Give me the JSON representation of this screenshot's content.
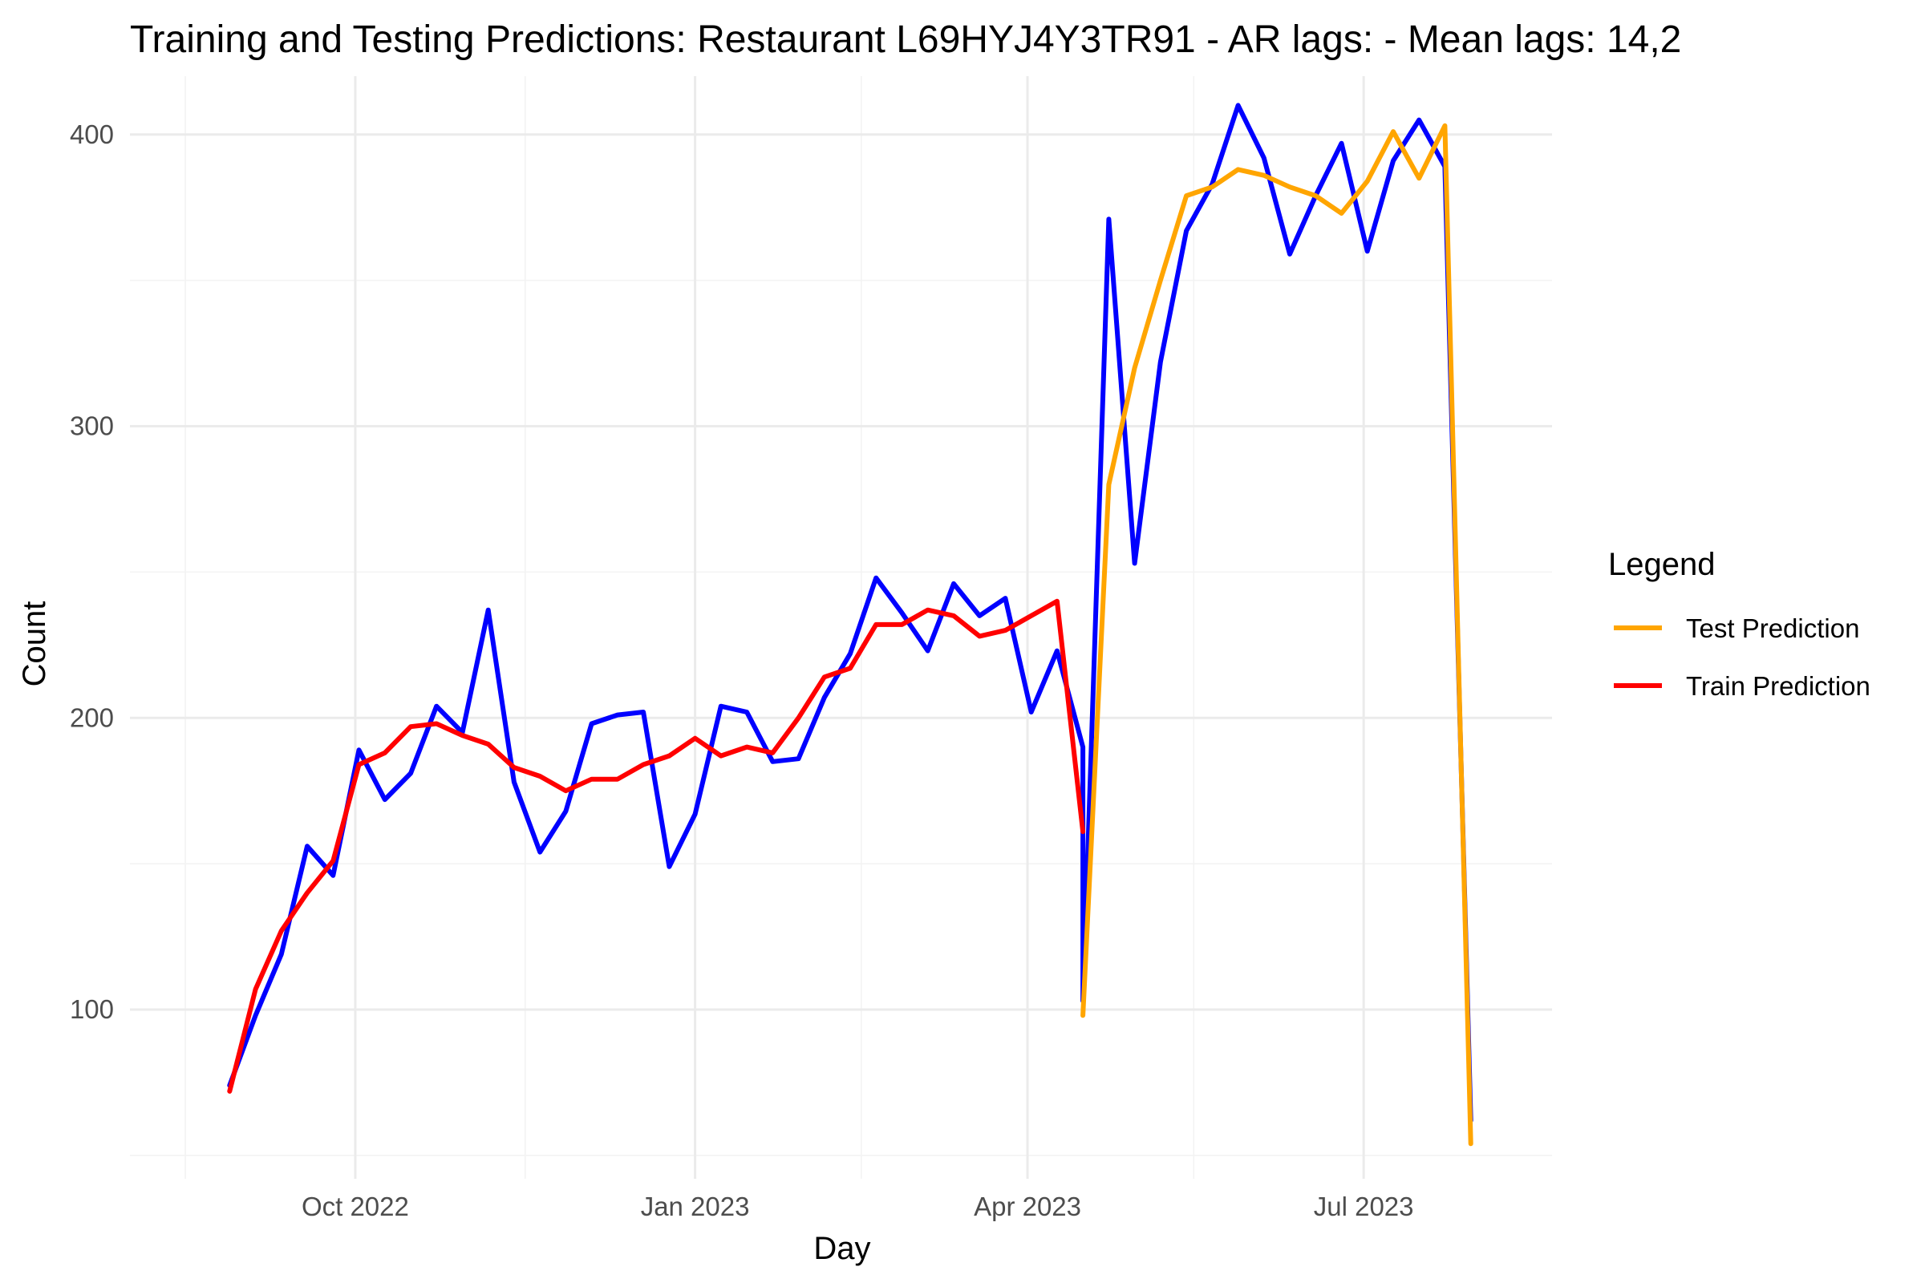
{
  "chart_data": {
    "type": "line",
    "title": "Training and Testing Predictions: Restaurant L69HYJ4Y3TR91 - AR lags:  - Mean lags: 14,2",
    "xlabel": "Day",
    "ylabel": "Count",
    "xlim": [
      "2022-08-01",
      "2023-08-21"
    ],
    "ylim": [
      42,
      420
    ],
    "x_ticks": [
      {
        "date": "2022-10-01",
        "label": "Oct 2022"
      },
      {
        "date": "2023-01-01",
        "label": "Jan 2023"
      },
      {
        "date": "2023-04-01",
        "label": "Apr 2023"
      },
      {
        "date": "2023-07-01",
        "label": "Jul 2023"
      }
    ],
    "x_minor_ticks": [
      "2022-08-16",
      "2022-11-16",
      "2023-02-15",
      "2023-05-16"
    ],
    "y_ticks": [
      100,
      200,
      300,
      400
    ],
    "y_minor_ticks": [
      50,
      150,
      250,
      350
    ],
    "grid": true,
    "legend": {
      "title": "Legend",
      "position": "right",
      "entries": [
        {
          "label": "Test Prediction",
          "color": "#FFA500"
        },
        {
          "label": "Train Prediction",
          "color": "#FF0000"
        }
      ]
    },
    "series": [
      {
        "color": "#0000FF",
        "points": [
          [
            "2022-08-28",
            74
          ],
          [
            "2022-09-04",
            98
          ],
          [
            "2022-09-11",
            119
          ],
          [
            "2022-09-18",
            156
          ],
          [
            "2022-09-25",
            146
          ],
          [
            "2022-10-02",
            189
          ],
          [
            "2022-10-09",
            172
          ],
          [
            "2022-10-16",
            181
          ],
          [
            "2022-10-23",
            204
          ],
          [
            "2022-10-30",
            195
          ],
          [
            "2022-11-06",
            237
          ],
          [
            "2022-11-13",
            178
          ],
          [
            "2022-11-20",
            154
          ],
          [
            "2022-11-27",
            168
          ],
          [
            "2022-12-04",
            198
          ],
          [
            "2022-12-11",
            201
          ],
          [
            "2022-12-18",
            202
          ],
          [
            "2022-12-25",
            149
          ],
          [
            "2023-01-01",
            167
          ],
          [
            "2023-01-08",
            204
          ],
          [
            "2023-01-15",
            202
          ],
          [
            "2023-01-22",
            185
          ],
          [
            "2023-01-29",
            186
          ],
          [
            "2023-02-05",
            207
          ],
          [
            "2023-02-12",
            222
          ],
          [
            "2023-02-19",
            248
          ],
          [
            "2023-02-26",
            236
          ],
          [
            "2023-03-05",
            223
          ],
          [
            "2023-03-12",
            246
          ],
          [
            "2023-03-19",
            235
          ],
          [
            "2023-03-26",
            241
          ],
          [
            "2023-04-02",
            202
          ],
          [
            "2023-04-09",
            223
          ],
          [
            "2023-04-16",
            190
          ],
          [
            "2023-04-16",
            103
          ],
          [
            "2023-04-23",
            371
          ],
          [
            "2023-04-30",
            253
          ],
          [
            "2023-05-07",
            322
          ],
          [
            "2023-05-14",
            367
          ],
          [
            "2023-05-21",
            383
          ],
          [
            "2023-05-28",
            410
          ],
          [
            "2023-06-04",
            392
          ],
          [
            "2023-06-11",
            359
          ],
          [
            "2023-06-18",
            379
          ],
          [
            "2023-06-25",
            397
          ],
          [
            "2023-07-02",
            360
          ],
          [
            "2023-07-09",
            391
          ],
          [
            "2023-07-16",
            405
          ],
          [
            "2023-07-23",
            389
          ],
          [
            "2023-07-30",
            62
          ]
        ]
      },
      {
        "name": "Train Prediction",
        "color": "#FF0000",
        "points": [
          [
            "2022-08-28",
            72
          ],
          [
            "2022-09-04",
            107
          ],
          [
            "2022-09-11",
            127
          ],
          [
            "2022-09-18",
            140
          ],
          [
            "2022-09-25",
            151
          ],
          [
            "2022-10-02",
            184
          ],
          [
            "2022-10-09",
            188
          ],
          [
            "2022-10-16",
            197
          ],
          [
            "2022-10-23",
            198
          ],
          [
            "2022-10-30",
            194
          ],
          [
            "2022-11-06",
            191
          ],
          [
            "2022-11-13",
            183
          ],
          [
            "2022-11-20",
            180
          ],
          [
            "2022-11-27",
            175
          ],
          [
            "2022-12-04",
            179
          ],
          [
            "2022-12-11",
            179
          ],
          [
            "2022-12-18",
            184
          ],
          [
            "2022-12-25",
            187
          ],
          [
            "2023-01-01",
            193
          ],
          [
            "2023-01-08",
            187
          ],
          [
            "2023-01-15",
            190
          ],
          [
            "2023-01-22",
            188
          ],
          [
            "2023-01-29",
            200
          ],
          [
            "2023-02-05",
            214
          ],
          [
            "2023-02-12",
            217
          ],
          [
            "2023-02-19",
            232
          ],
          [
            "2023-02-26",
            232
          ],
          [
            "2023-03-05",
            237
          ],
          [
            "2023-03-12",
            235
          ],
          [
            "2023-03-19",
            228
          ],
          [
            "2023-03-26",
            230
          ],
          [
            "2023-04-02",
            235
          ],
          [
            "2023-04-09",
            240
          ],
          [
            "2023-04-16",
            161
          ]
        ]
      },
      {
        "name": "Test Prediction",
        "color": "#FFA500",
        "points": [
          [
            "2023-04-16",
            98
          ],
          [
            "2023-04-23",
            280
          ],
          [
            "2023-04-30",
            320
          ],
          [
            "2023-05-07",
            350
          ],
          [
            "2023-05-14",
            379
          ],
          [
            "2023-05-21",
            382
          ],
          [
            "2023-05-28",
            388
          ],
          [
            "2023-06-04",
            386
          ],
          [
            "2023-06-11",
            382
          ],
          [
            "2023-06-18",
            379
          ],
          [
            "2023-06-25",
            373
          ],
          [
            "2023-07-02",
            384
          ],
          [
            "2023-07-09",
            401
          ],
          [
            "2023-07-16",
            385
          ],
          [
            "2023-07-23",
            403
          ],
          [
            "2023-07-30",
            54
          ]
        ]
      }
    ]
  }
}
